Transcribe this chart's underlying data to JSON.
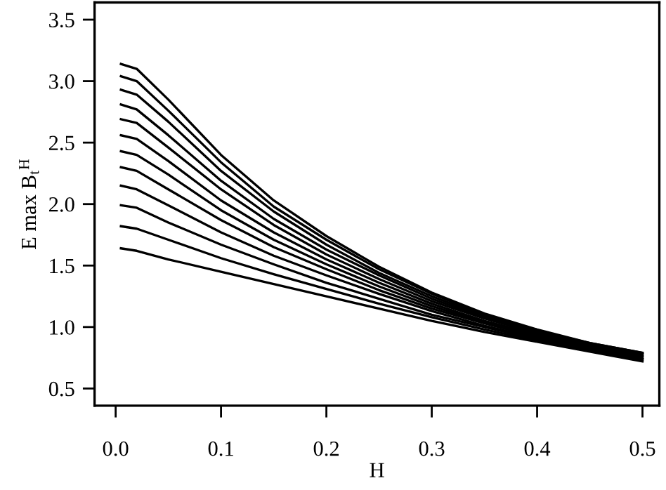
{
  "chart_data": {
    "type": "line",
    "xlabel": "H",
    "ylabel": "E max B$_{t}$$^{H}$",
    "x": [
      0.005,
      0.02,
      0.05,
      0.1,
      0.15,
      0.2,
      0.25,
      0.3,
      0.35,
      0.4,
      0.45,
      0.5
    ],
    "series": [
      {
        "color": "#000000",
        "values": [
          1.64,
          1.62,
          1.55,
          1.45,
          1.35,
          1.25,
          1.15,
          1.05,
          0.96,
          0.88,
          0.8,
          0.72
        ]
      },
      {
        "color": "#000000",
        "values": [
          1.82,
          1.8,
          1.71,
          1.56,
          1.43,
          1.31,
          1.19,
          1.08,
          0.98,
          0.89,
          0.81,
          0.73
        ]
      },
      {
        "color": "#000000",
        "values": [
          1.99,
          1.97,
          1.85,
          1.67,
          1.51,
          1.36,
          1.23,
          1.1,
          1.0,
          0.9,
          0.82,
          0.74
        ]
      },
      {
        "color": "#000000",
        "values": [
          2.15,
          2.12,
          1.99,
          1.77,
          1.58,
          1.42,
          1.27,
          1.13,
          1.01,
          0.91,
          0.82,
          0.74
        ]
      },
      {
        "color": "#000000",
        "values": [
          2.3,
          2.27,
          2.12,
          1.87,
          1.65,
          1.47,
          1.3,
          1.15,
          1.03,
          0.92,
          0.83,
          0.75
        ]
      },
      {
        "color": "#000000",
        "values": [
          2.43,
          2.4,
          2.24,
          1.95,
          1.71,
          1.51,
          1.33,
          1.17,
          1.04,
          0.93,
          0.84,
          0.76
        ]
      },
      {
        "color": "#000000",
        "values": [
          2.56,
          2.53,
          2.35,
          2.03,
          1.77,
          1.55,
          1.36,
          1.19,
          1.05,
          0.94,
          0.84,
          0.76
        ]
      },
      {
        "color": "#000000",
        "values": [
          2.69,
          2.66,
          2.46,
          2.12,
          1.83,
          1.59,
          1.39,
          1.21,
          1.07,
          0.95,
          0.85,
          0.77
        ]
      },
      {
        "color": "#000000",
        "values": [
          2.81,
          2.77,
          2.56,
          2.19,
          1.88,
          1.63,
          1.42,
          1.23,
          1.08,
          0.96,
          0.86,
          0.78
        ]
      },
      {
        "color": "#000000",
        "values": [
          2.93,
          2.89,
          2.67,
          2.27,
          1.94,
          1.67,
          1.44,
          1.25,
          1.09,
          0.97,
          0.86,
          0.78
        ]
      },
      {
        "color": "#000000",
        "values": [
          3.04,
          3.0,
          2.76,
          2.34,
          1.98,
          1.71,
          1.47,
          1.27,
          1.1,
          0.97,
          0.87,
          0.79
        ]
      },
      {
        "color": "#000000",
        "values": [
          3.14,
          3.1,
          2.85,
          2.4,
          2.03,
          1.74,
          1.49,
          1.28,
          1.11,
          0.98,
          0.87,
          0.79
        ]
      }
    ],
    "xlim": [
      -0.02,
      0.516
    ],
    "ylim": [
      0.36,
      3.64
    ],
    "xticks": [
      {
        "value": 0,
        "label": "0.0"
      },
      0.1,
      0.2,
      0.3,
      0.4,
      0.5
    ],
    "yticks": [
      0.5,
      {
        "value": 1,
        "label": "1.0"
      },
      1.5,
      {
        "value": 2,
        "label": "2.0"
      },
      2.5,
      {
        "value": 3,
        "label": "3.0"
      },
      3.5
    ],
    "grid": false,
    "marker": "none",
    "line_style": "solid"
  }
}
